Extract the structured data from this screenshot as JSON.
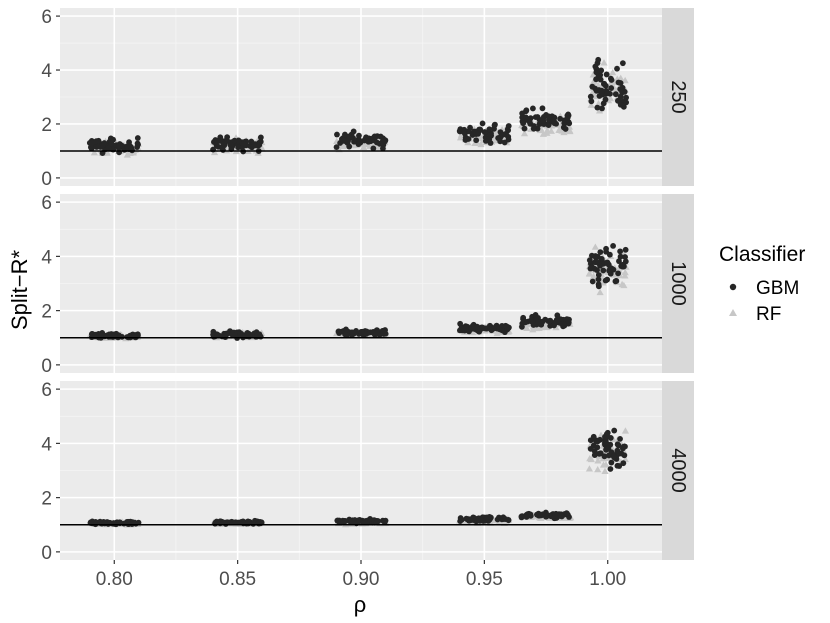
{
  "chart_data": {
    "type": "scatter",
    "xlabel": "ρ",
    "ylabel": "Split−R*",
    "xlim": [
      0.778,
      1.022
    ],
    "x_ticks": [
      0.8,
      0.85,
      0.9,
      0.95,
      1.0
    ],
    "x_tick_labels": [
      "0.80",
      "0.85",
      "0.90",
      "0.95",
      "1.00"
    ],
    "ylim": [
      -0.3,
      6.3
    ],
    "y_ticks": [
      0,
      2,
      4,
      6
    ],
    "y_tick_labels": [
      "0",
      "2",
      "4",
      "6"
    ],
    "reference_line_y": 1,
    "facet_by": "rows",
    "grid": true,
    "legend": {
      "title": "Classifier",
      "placement": "right",
      "entries": [
        {
          "name": "GBM",
          "color": "#262626",
          "shape": "circle"
        },
        {
          "name": "RF",
          "color": "#c7c7c7",
          "shape": "triangle"
        }
      ]
    },
    "panels": [
      {
        "label": "250",
        "groups": [
          {
            "x": 0.8,
            "GBM": {
              "mean": 1.2,
              "spread": 0.22
            },
            "RF": {
              "mean": 1.1,
              "spread": 0.2
            }
          },
          {
            "x": 0.85,
            "GBM": {
              "mean": 1.25,
              "spread": 0.22
            },
            "RF": {
              "mean": 1.2,
              "spread": 0.22
            }
          },
          {
            "x": 0.9,
            "GBM": {
              "mean": 1.4,
              "spread": 0.22
            },
            "RF": {
              "mean": 1.3,
              "spread": 0.2
            }
          },
          {
            "x": 0.95,
            "GBM": {
              "mean": 1.65,
              "spread": 0.3
            },
            "RF": {
              "mean": 1.55,
              "spread": 0.28
            }
          },
          {
            "x": 0.975,
            "GBM": {
              "mean": 2.1,
              "spread": 0.35
            },
            "RF": {
              "mean": 1.9,
              "spread": 0.3
            }
          },
          {
            "x": 1.0,
            "GBM": {
              "mean": 3.4,
              "spread": 0.8
            },
            "RF": {
              "mean": 3.3,
              "spread": 0.7
            }
          }
        ]
      },
      {
        "label": "1000",
        "groups": [
          {
            "x": 0.8,
            "GBM": {
              "mean": 1.08,
              "spread": 0.08
            },
            "RF": {
              "mean": 1.05,
              "spread": 0.06
            }
          },
          {
            "x": 0.85,
            "GBM": {
              "mean": 1.12,
              "spread": 0.1
            },
            "RF": {
              "mean": 1.1,
              "spread": 0.08
            }
          },
          {
            "x": 0.9,
            "GBM": {
              "mean": 1.2,
              "spread": 0.1
            },
            "RF": {
              "mean": 1.15,
              "spread": 0.08
            }
          },
          {
            "x": 0.95,
            "GBM": {
              "mean": 1.35,
              "spread": 0.13
            },
            "RF": {
              "mean": 1.3,
              "spread": 0.12
            }
          },
          {
            "x": 0.975,
            "GBM": {
              "mean": 1.6,
              "spread": 0.15
            },
            "RF": {
              "mean": 1.5,
              "spread": 0.14
            }
          },
          {
            "x": 1.0,
            "GBM": {
              "mean": 3.7,
              "spread": 0.6
            },
            "RF": {
              "mean": 3.5,
              "spread": 0.6
            }
          }
        ]
      },
      {
        "label": "4000",
        "groups": [
          {
            "x": 0.8,
            "GBM": {
              "mean": 1.07,
              "spread": 0.05
            },
            "RF": {
              "mean": 1.05,
              "spread": 0.04
            }
          },
          {
            "x": 0.85,
            "GBM": {
              "mean": 1.08,
              "spread": 0.05
            },
            "RF": {
              "mean": 1.05,
              "spread": 0.04
            }
          },
          {
            "x": 0.9,
            "GBM": {
              "mean": 1.12,
              "spread": 0.06
            },
            "RF": {
              "mean": 1.08,
              "spread": 0.05
            }
          },
          {
            "x": 0.95,
            "GBM": {
              "mean": 1.2,
              "spread": 0.08
            },
            "RF": {
              "mean": 1.15,
              "spread": 0.07
            }
          },
          {
            "x": 0.975,
            "GBM": {
              "mean": 1.35,
              "spread": 0.08
            },
            "RF": {
              "mean": 1.3,
              "spread": 0.07
            }
          },
          {
            "x": 1.0,
            "GBM": {
              "mean": 3.8,
              "spread": 0.6
            },
            "RF": {
              "mean": 3.7,
              "spread": 0.6
            }
          }
        ]
      }
    ]
  }
}
